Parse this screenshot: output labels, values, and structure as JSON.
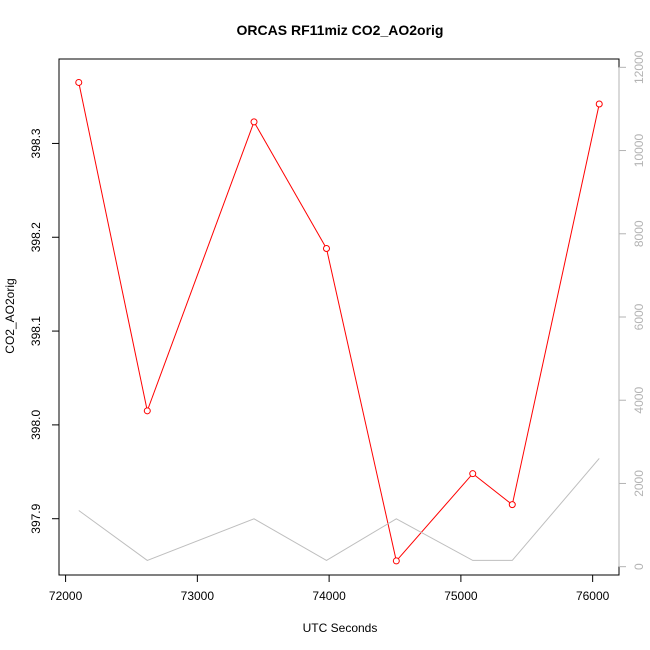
{
  "chart_data": {
    "type": "line",
    "title": "ORCAS RF11miz CO2_AO2orig",
    "xlabel": "UTC Seconds",
    "ylabel": "CO2_AO2orig",
    "xlim": [
      71950,
      76200
    ],
    "ylim": [
      397.84,
      398.39
    ],
    "ylim_right": [
      -200,
      12200
    ],
    "x_ticks": [
      72000,
      73000,
      74000,
      75000,
      76000
    ],
    "y_ticks": [
      397.9,
      398.0,
      398.1,
      398.2,
      398.3
    ],
    "y_ticks_right": [
      0,
      2000,
      4000,
      6000,
      8000,
      10000,
      12000
    ],
    "series": [
      {
        "axis": "left",
        "color": "#ff0000",
        "marker": "open-circle",
        "x": [
          72100,
          72620,
          73430,
          73980,
          74510,
          75090,
          75390,
          76050
        ],
        "y": [
          398.365,
          398.015,
          398.323,
          398.188,
          397.855,
          397.948,
          397.915,
          398.342
        ]
      },
      {
        "axis": "right",
        "color": "#bebebe",
        "marker": "none",
        "x": [
          72100,
          72620,
          73430,
          73980,
          74510,
          75090,
          75390,
          76050
        ],
        "y": [
          1350,
          150,
          1150,
          150,
          1150,
          150,
          150,
          2600
        ]
      }
    ],
    "grid": false,
    "legend": "none"
  }
}
